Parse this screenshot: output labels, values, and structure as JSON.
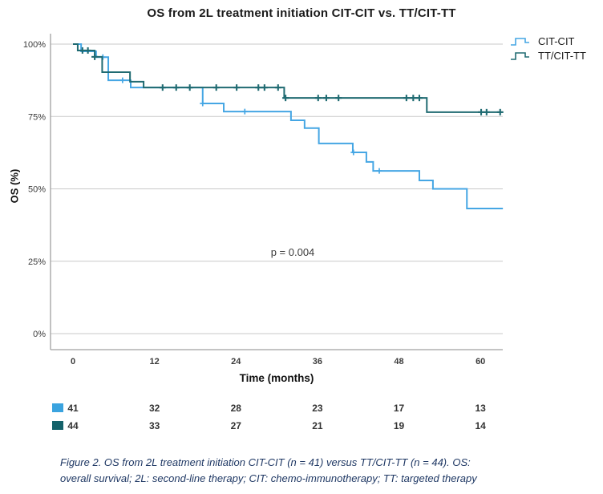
{
  "title": "OS from 2L treatment initiation CIT-CIT vs. TT/CIT-TT",
  "chart_data": {
    "type": "line",
    "subtype": "kaplan-meier-step",
    "title": "OS from 2L treatment initiation CIT-CIT vs. TT/CIT-TT",
    "xlabel": "Time (months)",
    "ylabel": "OS (%)",
    "x_ticks": [
      0,
      12,
      24,
      36,
      48,
      60
    ],
    "y_ticks": [
      "100%",
      "75%",
      "50%",
      "25%",
      "0%"
    ],
    "y_tick_values": [
      100,
      75,
      50,
      25,
      0
    ],
    "xlim": [
      -3.3,
      63.3
    ],
    "ylim": [
      0,
      100
    ],
    "grid": true,
    "legend_position": "top-right",
    "annotation": "p = 0.004",
    "series": [
      {
        "name": "CIT-CIT",
        "color": "#45a6e4",
        "end_month": 63.3,
        "steps": [
          [
            0,
            100
          ],
          [
            1.2,
            97.5
          ],
          [
            3.4,
            95.5
          ],
          [
            5.2,
            87.5
          ],
          [
            8.5,
            85.0
          ],
          [
            19.1,
            79.5
          ],
          [
            22.2,
            76.7
          ],
          [
            32.1,
            73.7
          ],
          [
            34.1,
            71.0
          ],
          [
            36.2,
            65.7
          ],
          [
            41.2,
            62.6
          ],
          [
            43.2,
            59.3
          ],
          [
            44.2,
            56.2
          ],
          [
            51.0,
            52.9
          ],
          [
            53.0,
            50.0
          ],
          [
            58.0,
            43.2
          ]
        ],
        "censors": [
          [
            4.4,
            95.5
          ],
          [
            7.3,
            87.5
          ],
          [
            19.1,
            79.5
          ],
          [
            25.3,
            76.7
          ],
          [
            41.3,
            62.6
          ],
          [
            45.1,
            56.2
          ]
        ]
      },
      {
        "name": "TT/CIT-TT",
        "color": "#206b72",
        "end_month": 63.3,
        "steps": [
          [
            0,
            100
          ],
          [
            0.7,
            97.8
          ],
          [
            3.2,
            95.6
          ],
          [
            4.3,
            90.3
          ],
          [
            8.4,
            87.0
          ],
          [
            10.4,
            85.0
          ],
          [
            31.1,
            81.4
          ],
          [
            52.1,
            76.5
          ]
        ],
        "censors": [
          [
            1.4,
            97.8
          ],
          [
            2.2,
            97.8
          ],
          [
            3.2,
            95.6
          ],
          [
            13.2,
            85.0
          ],
          [
            15.2,
            85.0
          ],
          [
            17.2,
            85.0
          ],
          [
            21.1,
            85.0
          ],
          [
            24.1,
            85.0
          ],
          [
            27.3,
            85.0
          ],
          [
            28.2,
            85.0
          ],
          [
            30.2,
            85.0
          ],
          [
            31.3,
            81.4
          ],
          [
            36.1,
            81.4
          ],
          [
            37.3,
            81.4
          ],
          [
            39.1,
            81.4
          ],
          [
            49.1,
            81.4
          ],
          [
            50.1,
            81.4
          ],
          [
            51.0,
            81.4
          ],
          [
            60.1,
            76.5
          ],
          [
            60.9,
            76.5
          ],
          [
            62.9,
            76.5
          ]
        ]
      }
    ]
  },
  "risk_table": {
    "rows": [
      {
        "label": "CIT-CIT",
        "swatch_color": "#3aa3df",
        "values": [
          "41",
          "32",
          "28",
          "23",
          "17",
          "13"
        ]
      },
      {
        "label": "TT/CIT-TT",
        "swatch_color": "#14626a",
        "values": [
          "44",
          "33",
          "27",
          "21",
          "19",
          "14"
        ]
      }
    ]
  },
  "caption": {
    "line1": "Figure 2. OS from 2L treatment initiation CIT-CIT (n = 41) versus TT/CIT-TT (n = 44). OS:",
    "line2": "overall survival; 2L: second-line therapy; CIT: chemo-immunotherapy; TT: targeted therapy"
  },
  "colors": {
    "gridline": "#c9c9c9",
    "axis": "#a0a0a0",
    "tick_label": "#3c3c3c"
  }
}
